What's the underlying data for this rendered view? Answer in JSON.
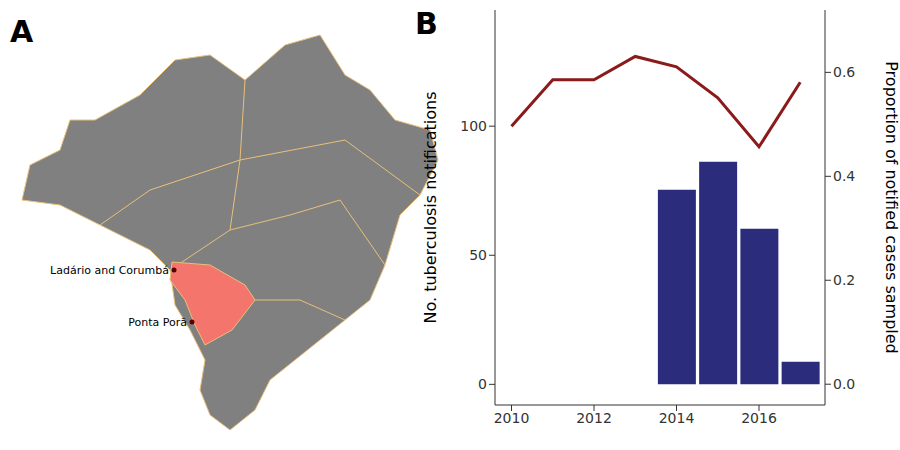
{
  "panel_labels": [
    "A",
    "B"
  ],
  "map": {
    "labels": [
      "Ladário and Corumbá",
      "Ponta Porã"
    ]
  },
  "chart_data": {
    "type": "bar",
    "x": [
      2010,
      2011,
      2012,
      2013,
      2014,
      2015,
      2016,
      2017
    ],
    "series": [
      {
        "name": "No. tuberculosis notifications",
        "type": "line",
        "color": "#8b1a1a",
        "values": [
          100,
          118,
          118,
          127,
          123,
          111,
          92,
          117
        ]
      },
      {
        "name": "Proportion of notified cases sampled",
        "type": "bar",
        "axis": "y2",
        "color": "#2b2d7c",
        "values": [
          null,
          null,
          null,
          null,
          0.374,
          0.428,
          0.299,
          0.043
        ]
      }
    ],
    "xlim": [
      2009.6,
      2017.6
    ],
    "xticks": [
      2010,
      2012,
      2014,
      2016
    ],
    "ylim": [
      -8,
      145
    ],
    "yticks": [
      0,
      50,
      100
    ],
    "y2lim": [
      -0.04,
      0.72
    ],
    "y2ticks": [
      {
        "value": 0,
        "label": "0.0"
      },
      0.2,
      0.4,
      0.6
    ]
  }
}
